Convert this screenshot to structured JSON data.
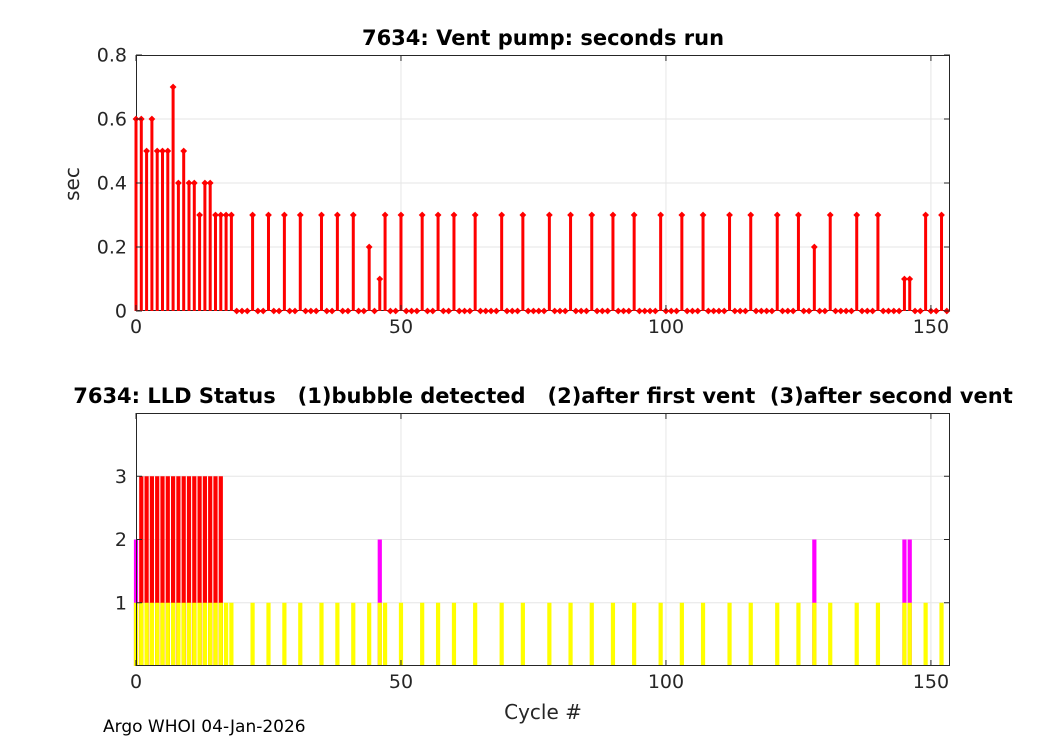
{
  "figure": {
    "background": "#ffffff",
    "axis_color": "#262626",
    "grid_color": "#e6e6e6",
    "footer": "Argo WHOI 04-Jan-2026"
  },
  "chart_data": [
    {
      "type": "stem",
      "title": "7634: Vent pump: seconds run",
      "xlabel": "",
      "ylabel": "sec",
      "color": "#ff0000",
      "grid": true,
      "legend": "none",
      "xlim": [
        0,
        153.6
      ],
      "ylim": [
        0,
        0.8
      ],
      "xtick_values": [
        0,
        50,
        100,
        150
      ],
      "xtick_labels": [
        "0",
        "50",
        "100",
        "150"
      ],
      "ytick_values": [
        0,
        0.2,
        0.4,
        0.6,
        0.8
      ],
      "ytick_labels": [
        "0",
        "0.2",
        "0.4",
        "0.6",
        "0.8"
      ],
      "x_first": 0,
      "x_last": 153,
      "default_value": 0,
      "nonzero_points": {
        "0": 0.6,
        "1": 0.6,
        "2": 0.5,
        "3": 0.6,
        "4": 0.5,
        "5": 0.5,
        "6": 0.5,
        "7": 0.7,
        "8": 0.4,
        "9": 0.5,
        "10": 0.4,
        "11": 0.4,
        "12": 0.3,
        "13": 0.4,
        "14": 0.4,
        "15": 0.3,
        "16": 0.3,
        "17": 0.3,
        "18": 0.3,
        "22": 0.3,
        "25": 0.3,
        "28": 0.3,
        "31": 0.3,
        "35": 0.3,
        "38": 0.3,
        "41": 0.3,
        "44": 0.2,
        "46": 0.1,
        "47": 0.3,
        "50": 0.3,
        "54": 0.3,
        "57": 0.3,
        "60": 0.3,
        "64": 0.3,
        "69": 0.3,
        "73": 0.3,
        "78": 0.3,
        "82": 0.3,
        "86": 0.3,
        "90": 0.3,
        "94": 0.3,
        "99": 0.3,
        "103": 0.3,
        "107": 0.3,
        "112": 0.3,
        "116": 0.3,
        "121": 0.3,
        "125": 0.3,
        "128": 0.2,
        "131": 0.3,
        "136": 0.3,
        "140": 0.3,
        "145": 0.1,
        "146": 0.1,
        "149": 0.3,
        "152": 0.3
      }
    },
    {
      "type": "bar",
      "title": "7634: LLD Status   (1)bubble detected   (2)after first vent  (3)after second vent",
      "xlabel": "Cycle #",
      "ylabel": "",
      "grid": true,
      "legend": "none",
      "xlim": [
        0,
        153.6
      ],
      "ylim": [
        0,
        4
      ],
      "xtick_values": [
        0,
        50,
        100,
        150
      ],
      "xtick_labels": [
        "0",
        "50",
        "100",
        "150"
      ],
      "ytick_values": [
        1,
        2,
        3
      ],
      "ytick_labels": [
        "1",
        "2",
        "3"
      ],
      "series": [
        {
          "name": "(3) after second vent",
          "color": "#ff0000",
          "height": 3,
          "cycles": [
            1,
            2,
            3,
            4,
            5,
            6,
            7,
            8,
            9,
            10,
            11,
            12,
            13,
            14,
            15,
            16
          ]
        },
        {
          "name": "(2) after first vent",
          "color": "#ff00ff",
          "height": 2,
          "cycles": [
            0,
            46,
            128,
            145,
            146
          ]
        },
        {
          "name": "(1) bubble detected",
          "color": "#ffff00",
          "height": 1,
          "cycles": [
            0,
            1,
            2,
            3,
            4,
            5,
            6,
            7,
            8,
            9,
            10,
            11,
            12,
            13,
            14,
            15,
            16,
            17,
            18,
            22,
            25,
            28,
            31,
            35,
            38,
            41,
            44,
            46,
            47,
            50,
            54,
            57,
            60,
            64,
            69,
            73,
            78,
            82,
            86,
            90,
            94,
            99,
            103,
            107,
            112,
            116,
            121,
            125,
            128,
            131,
            136,
            140,
            145,
            146,
            149,
            152
          ]
        }
      ]
    }
  ]
}
